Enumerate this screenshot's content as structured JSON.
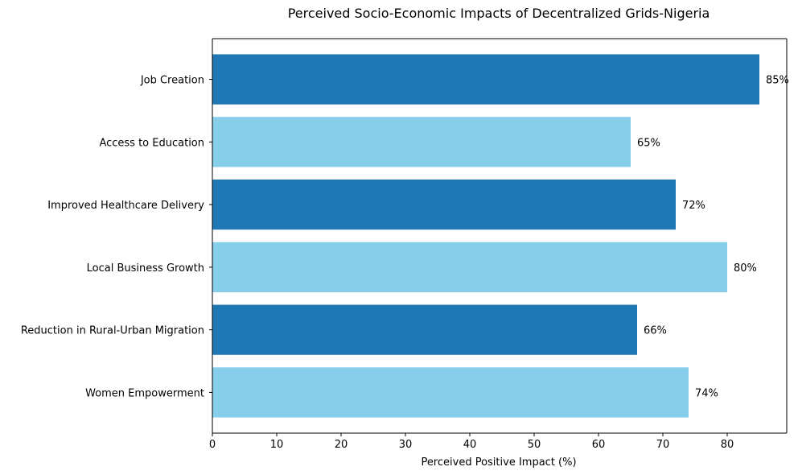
{
  "chart_data": {
    "type": "bar",
    "orientation": "horizontal",
    "title": "Perceived Socio-Economic Impacts of Decentralized Grids-Nigeria",
    "xlabel": "Perceived Positive Impact (%)",
    "ylabel": "",
    "xlim": [
      0,
      89.25
    ],
    "xticks": [
      0,
      10,
      20,
      30,
      40,
      50,
      60,
      70,
      80
    ],
    "categories": [
      "Job Creation",
      "Access to Education",
      "Improved Healthcare Delivery",
      "Local Business Growth",
      "Reduction in Rural-Urban Migration",
      "Women Empowerment"
    ],
    "values": [
      85,
      65,
      72,
      80,
      66,
      74
    ],
    "value_labels": [
      "85%",
      "65%",
      "72%",
      "80%",
      "66%",
      "74%"
    ],
    "bar_colors": [
      "#1f77b4",
      "#87ceeb",
      "#1f77b4",
      "#87ceeb",
      "#1f77b4",
      "#87ceeb"
    ],
    "grid": false,
    "legend": "none"
  }
}
